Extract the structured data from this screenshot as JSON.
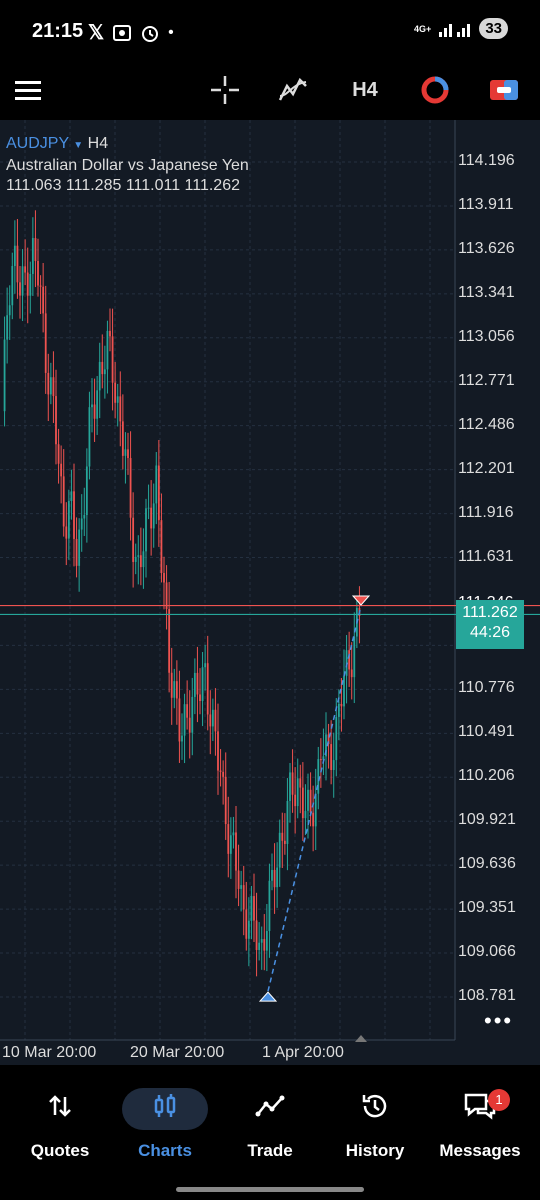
{
  "status": {
    "time": "21:15",
    "signal": "4G+",
    "battery": "33"
  },
  "toolbar": {
    "timeframe": "H4"
  },
  "chart_header": {
    "symbol": "AUDJPY",
    "timeframe": "H4",
    "description": "Australian Dollar vs Japanese Yen",
    "ohlc": "111.063 111.285 111.011 111.262"
  },
  "bid": {
    "price": "111.262",
    "countdown": "44:26",
    "partial_label": "111.346"
  },
  "nav": {
    "quotes": "Quotes",
    "charts": "Charts",
    "trade": "Trade",
    "history": "History",
    "messages": "Messages",
    "messages_badge": "1"
  },
  "chart_data": {
    "type": "candlestick",
    "symbol": "AUDJPY",
    "timeframe": "H4",
    "price_ticks": [
      "114.196",
      "113.911",
      "113.626",
      "113.341",
      "113.056",
      "112.771",
      "112.486",
      "112.201",
      "111.916",
      "111.631",
      "111.061",
      "110.776",
      "110.491",
      "110.206",
      "109.921",
      "109.636",
      "109.351",
      "109.066",
      "108.781"
    ],
    "time_ticks": [
      "10 Mar 20:00",
      "20 Mar 20:00",
      "1 Apr 20:00"
    ],
    "ylim": [
      108.6,
      114.35
    ],
    "current_price": 111.262,
    "ask_line": 111.3,
    "grid": true,
    "colors": {
      "up": "#26a69a",
      "down": "#ef5350",
      "bid_line": "#26a69a",
      "ask_line": "#ef5350",
      "trend": "#4a90e2"
    },
    "trend_line": {
      "from": 108.78,
      "to": 111.33
    },
    "closes": [
      112.5,
      113.4,
      113.6,
      113.3,
      113.5,
      113.6,
      113.4,
      113.0,
      112.7,
      112.3,
      111.9,
      112.0,
      111.6,
      111.9,
      112.4,
      112.6,
      112.9,
      113.0,
      112.8,
      112.6,
      112.3,
      111.8,
      111.6,
      111.7,
      111.9,
      112.2,
      111.5,
      111.0,
      110.8,
      110.4,
      110.6,
      110.8,
      110.7,
      110.9,
      110.6,
      110.3,
      110.1,
      109.8,
      109.6,
      109.4,
      109.3,
      109.2,
      109.1,
      109.3,
      109.5,
      109.8,
      109.9,
      110.1,
      110.2,
      110.0,
      109.9,
      110.2,
      110.4,
      110.3,
      110.5,
      110.7,
      110.9,
      111.1,
      111.26
    ]
  }
}
